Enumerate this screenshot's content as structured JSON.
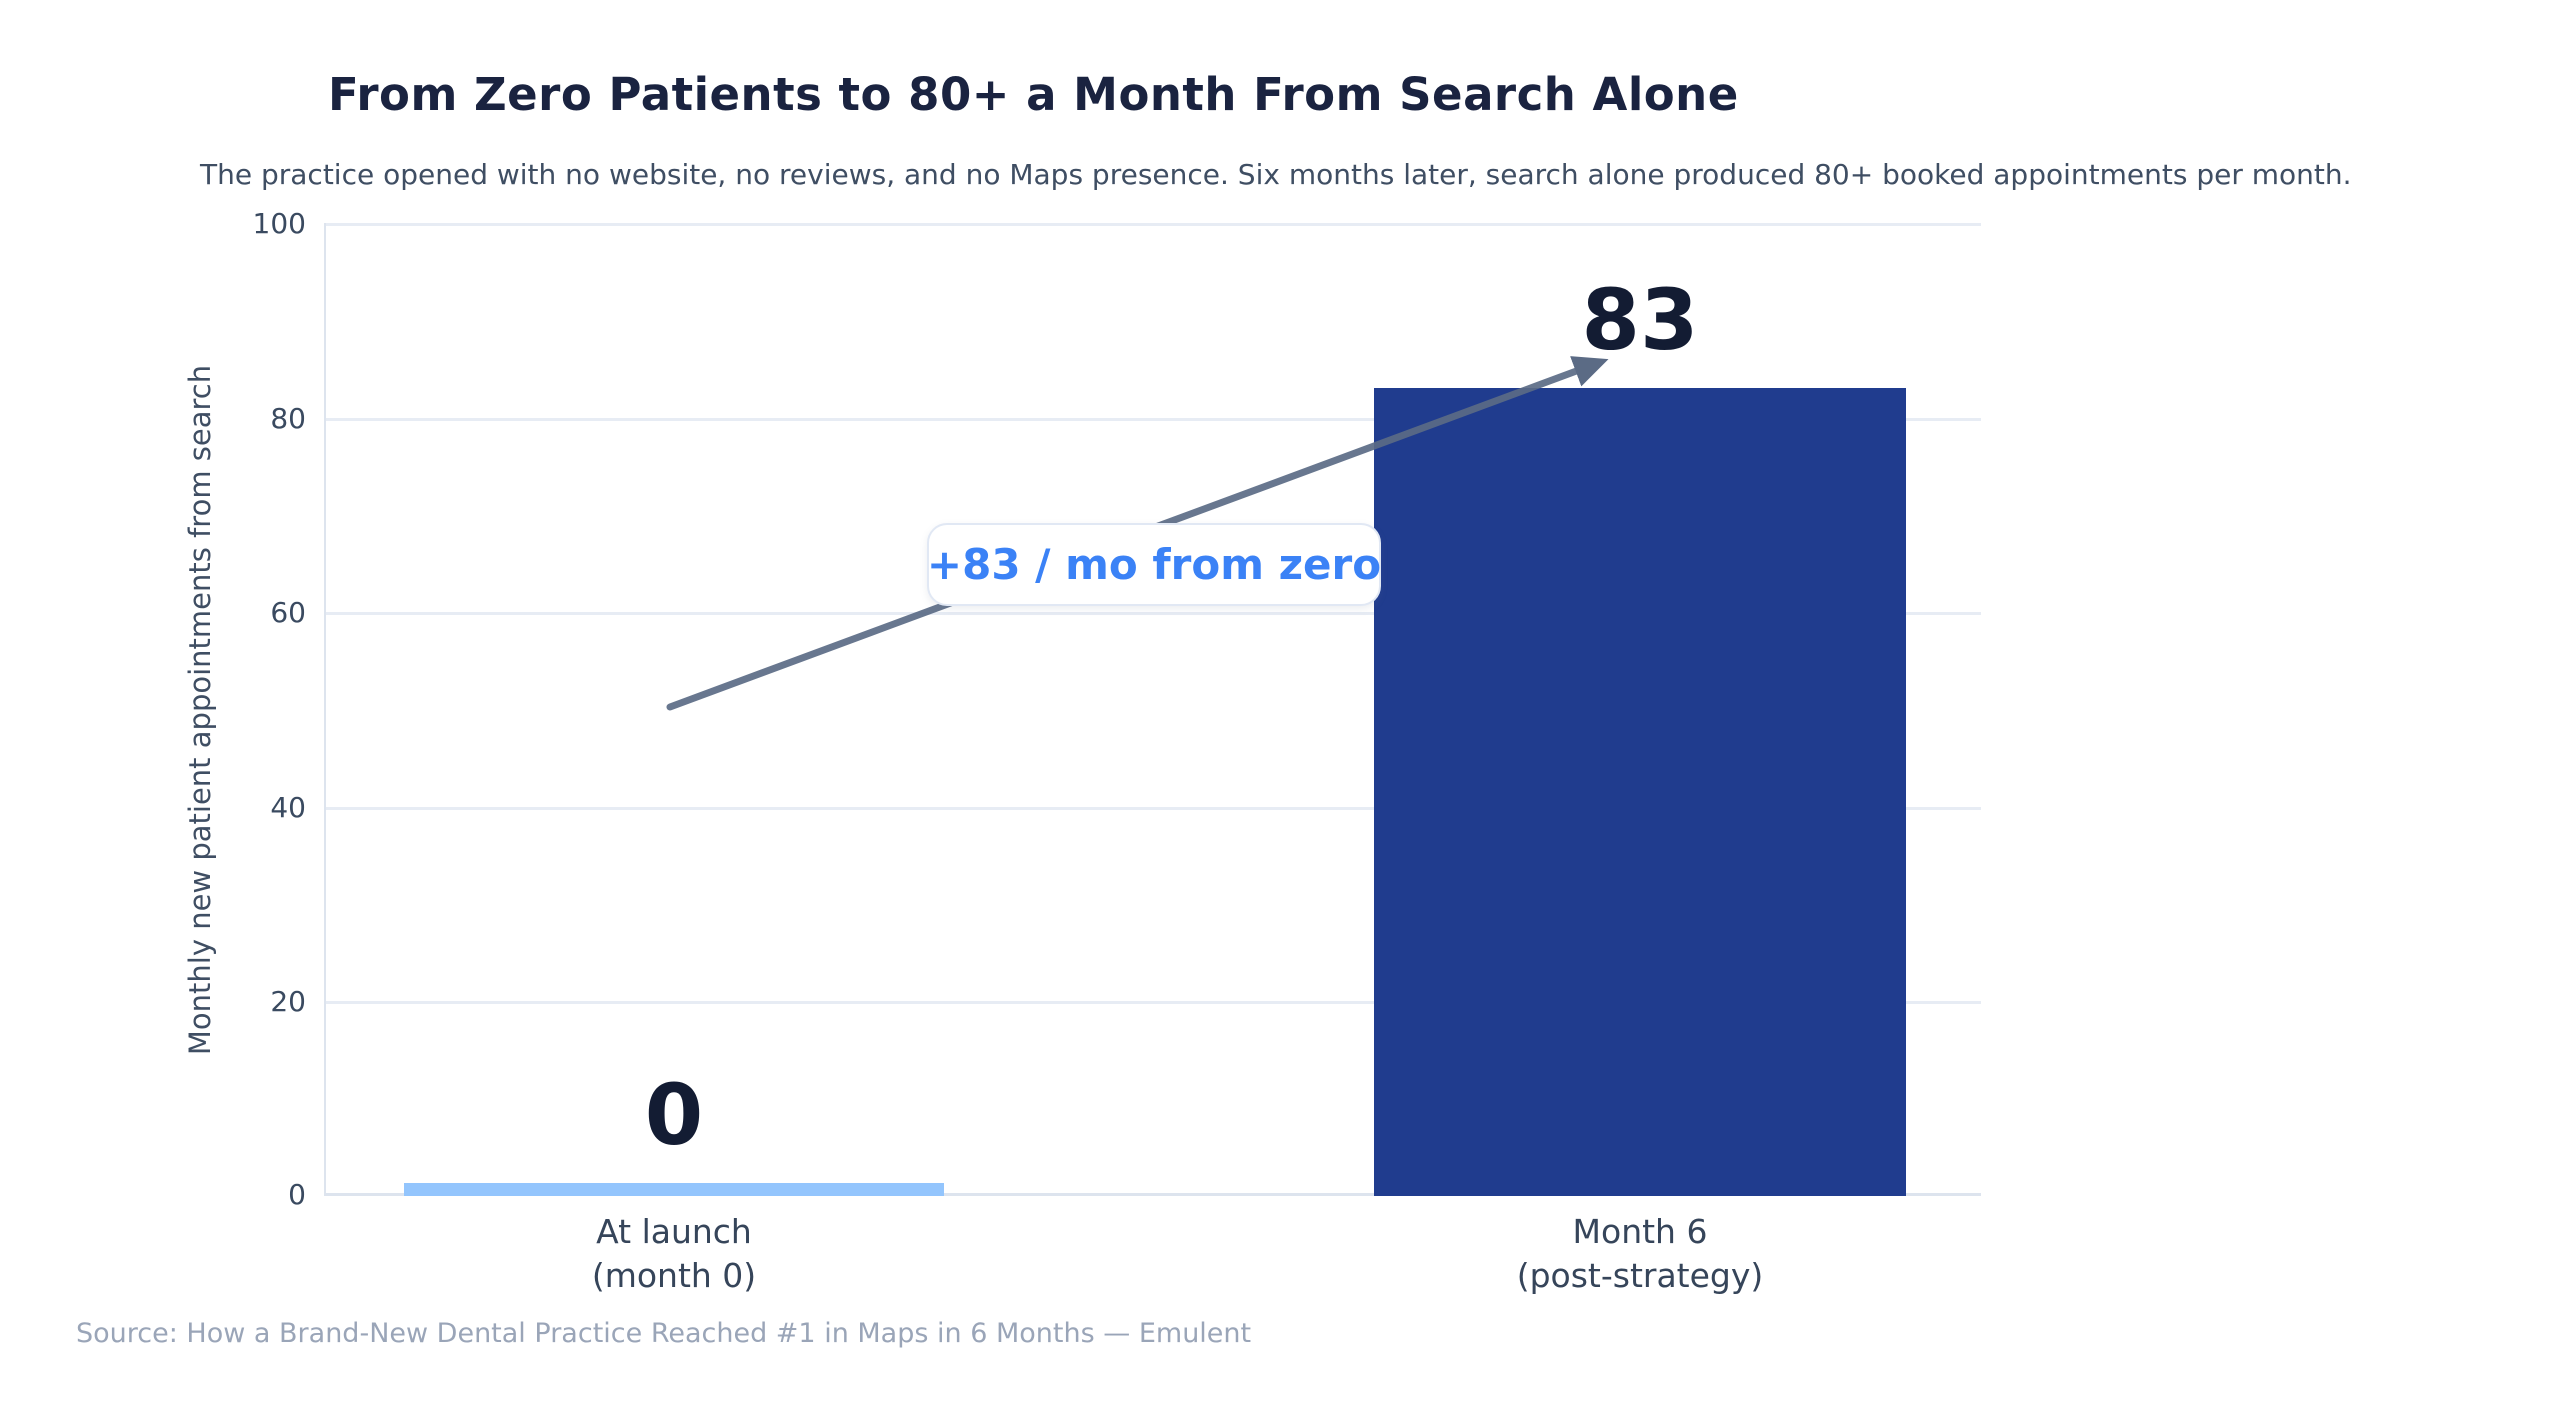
{
  "chart_data": {
    "type": "bar",
    "title": "From Zero Patients to 80+ a Month From Search Alone",
    "subtitle": "The practice opened with no website, no reviews, and no Maps presence. Six months later, search alone produced 80+ booked appointments per month.",
    "ylabel": "Monthly new patient appointments from search",
    "xlabel": "",
    "ylim": [
      0,
      100
    ],
    "ytick_labels": [
      "100",
      "80",
      "60",
      "40",
      "20",
      "0"
    ],
    "grid": "horizontal gridlines on, light gray",
    "legend": "none",
    "categories": [
      {
        "line1": "At launch",
        "line2": "(month 0)"
      },
      {
        "line1": "Month 6",
        "line2": "(post-strategy)"
      }
    ],
    "values": [
      0,
      83
    ],
    "bar_labels": [
      "0",
      "83"
    ],
    "bar_colors": [
      "#93c5fd",
      "#203c8e"
    ],
    "annotation": {
      "label": "+83 / mo from zero",
      "color": "#3b82f6"
    },
    "source": "Source: How a Brand-New Dental Practice Reached #1 in Maps in 6 Months — Emulent"
  },
  "colors": {
    "background": "#ffffff",
    "title_text": "#1a2340",
    "subtitle_text": "#3f4e63",
    "axis_text": "#3a4a60",
    "value_label_text": "#131c33",
    "gridline": "#e7ecf4",
    "arrow": "#5b6b85",
    "source_text": "#9aa5b8"
  }
}
